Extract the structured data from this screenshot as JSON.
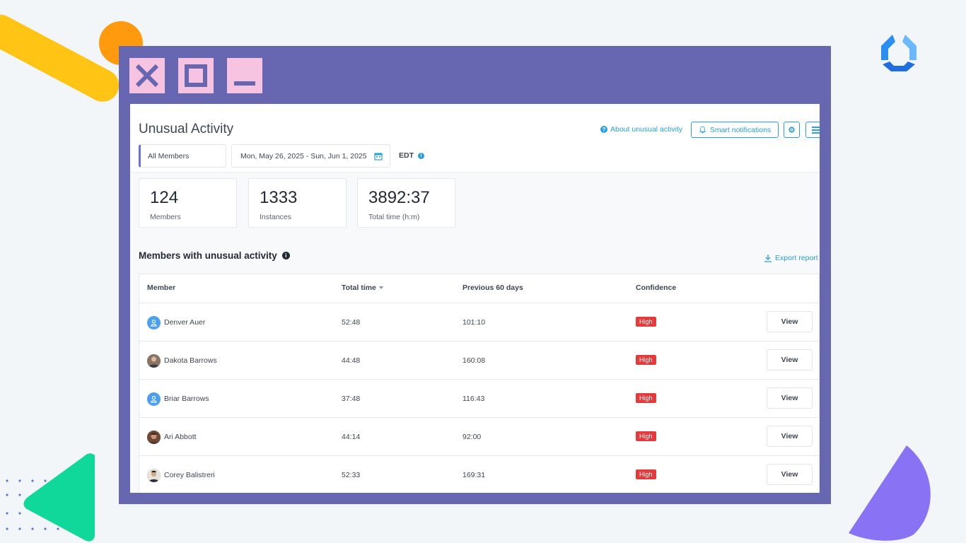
{
  "colors": {
    "window_frame": "#6766b0",
    "window_buttons": "#f6c3e0",
    "accent_blue": "#2a9fe0",
    "badge_red": "#e33b3b",
    "deco_yellow": "#ffc414",
    "deco_orange": "#ff9a0f",
    "deco_green": "#10d89a",
    "deco_purple": "#8a72f5"
  },
  "window_controls": {
    "close_icon": "close-icon",
    "maximize_icon": "maximize-icon",
    "minimize_icon": "minimize-icon"
  },
  "header": {
    "title": "Unusual Activity",
    "about_link": "About unusual activity",
    "smart_notifications": "Smart notifications",
    "settings_icon": "gear-icon",
    "list_icon": "list-icon"
  },
  "filters": {
    "members": "All Members",
    "date_range": "Mon, May 26, 2025 - Sun, Jun 1, 2025",
    "timezone": "EDT"
  },
  "stats": [
    {
      "value": "124",
      "label": "Members"
    },
    {
      "value": "1333",
      "label": "Instances"
    },
    {
      "value": "3892:37",
      "label": "Total time (h:m)"
    }
  ],
  "section": {
    "title": "Members with unusual activity",
    "export": "Export report"
  },
  "table": {
    "columns": [
      "Member",
      "Total time",
      "Previous 60 days",
      "Confidence"
    ],
    "rows": [
      {
        "member": "Denver Auer",
        "total": "52:48",
        "prev": "101:10",
        "confidence": "High",
        "action": "View",
        "avatar": "placeholder"
      },
      {
        "member": "Dakota Barrows",
        "total": "44:48",
        "prev": "160:08",
        "confidence": "High",
        "action": "View",
        "avatar": "photo"
      },
      {
        "member": "Briar Barrows",
        "total": "37:48",
        "prev": "116:43",
        "confidence": "High",
        "action": "View",
        "avatar": "placeholder"
      },
      {
        "member": "Ari Abbott",
        "total": "44:14",
        "prev": "92:00",
        "confidence": "High",
        "action": "View",
        "avatar": "photo"
      },
      {
        "member": "Corey Balistreri",
        "total": "52:33",
        "prev": "169:31",
        "confidence": "High",
        "action": "View",
        "avatar": "photo"
      }
    ]
  }
}
